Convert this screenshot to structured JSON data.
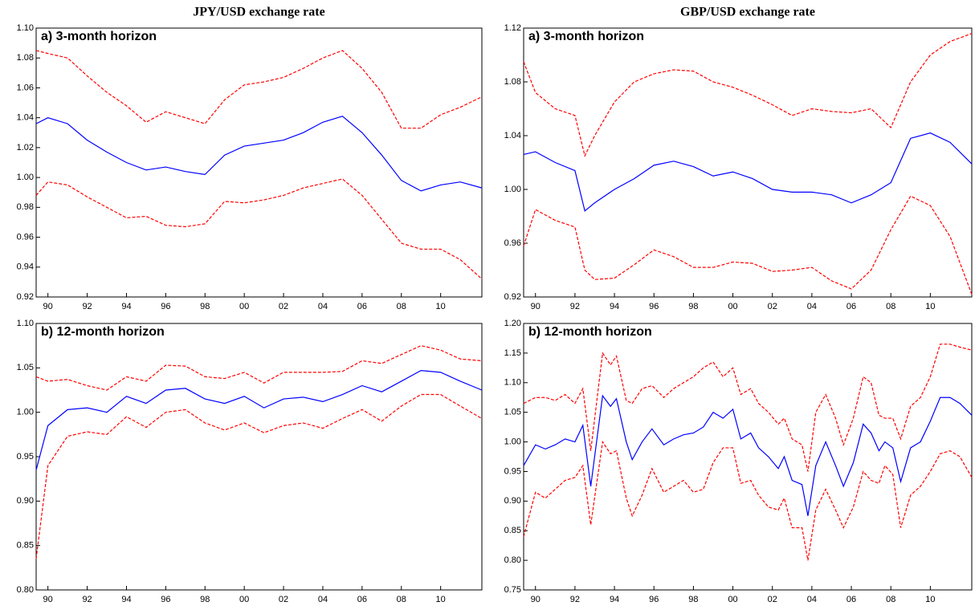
{
  "chart_data": [
    {
      "type": "line",
      "title": "JPY/USD exchange rate",
      "panel_label": "a) 3-month horizon",
      "x": [
        1989.4,
        1990,
        1991,
        1992,
        1993,
        1994,
        1995,
        1996,
        1997,
        1998,
        1999,
        2000,
        2001,
        2002,
        2003,
        2004,
        2005,
        2006,
        2007,
        2008,
        2009,
        2010,
        2011,
        2012.1
      ],
      "series": [
        {
          "color": "#0000ff",
          "dashed": false,
          "values": [
            1.036,
            1.04,
            1.036,
            1.025,
            1.017,
            1.01,
            1.005,
            1.007,
            1.004,
            1.002,
            1.015,
            1.021,
            1.023,
            1.025,
            1.03,
            1.037,
            1.041,
            1.03,
            1.015,
            0.998,
            0.991,
            0.995,
            0.997,
            0.993
          ]
        },
        {
          "color": "#ff0000",
          "dashed": true,
          "values": [
            1.085,
            1.083,
            1.08,
            1.068,
            1.057,
            1.048,
            1.037,
            1.044,
            1.04,
            1.036,
            1.052,
            1.062,
            1.064,
            1.067,
            1.073,
            1.08,
            1.085,
            1.073,
            1.057,
            1.033,
            1.033,
            1.042,
            1.047,
            1.054
          ]
        },
        {
          "color": "#ff0000",
          "dashed": true,
          "values": [
            0.988,
            0.997,
            0.995,
            0.987,
            0.98,
            0.973,
            0.974,
            0.968,
            0.967,
            0.969,
            0.984,
            0.983,
            0.985,
            0.988,
            0.993,
            0.996,
            0.999,
            0.988,
            0.972,
            0.956,
            0.952,
            0.952,
            0.945,
            0.932
          ]
        }
      ],
      "xlim": [
        1989.4,
        2012.1
      ],
      "xticks": [
        {
          "value": 1990,
          "label": "90"
        },
        {
          "value": 1992,
          "label": "92"
        },
        {
          "value": 1994,
          "label": "94"
        },
        {
          "value": 1996,
          "label": "96"
        },
        {
          "value": 1998,
          "label": "98"
        },
        {
          "value": 2000,
          "label": "00"
        },
        {
          "value": 2002,
          "label": "02"
        },
        {
          "value": 2004,
          "label": "04"
        },
        {
          "value": 2006,
          "label": "06"
        },
        {
          "value": 2008,
          "label": "08"
        },
        {
          "value": 2010,
          "label": "10"
        }
      ],
      "ylim": [
        0.92,
        1.1
      ],
      "yticks": [
        0.92,
        0.94,
        0.96,
        0.98,
        {
          "value": 1.0,
          "label": "1.00"
        },
        1.02,
        1.04,
        1.06,
        1.08,
        {
          "value": 1.1,
          "label": "1.10"
        }
      ]
    },
    {
      "type": "line",
      "title": "GBP/USD exchange rate",
      "panel_label": "a) 3-month horizon",
      "x": [
        1989.4,
        1990,
        1991,
        1992,
        1992.5,
        1993,
        1994,
        1995,
        1996,
        1997,
        1998,
        1999,
        2000,
        2001,
        2002,
        2003,
        2004,
        2005,
        2006,
        2007,
        2008,
        2009,
        2010,
        2011,
        2012.1
      ],
      "series": [
        {
          "color": "#0000ff",
          "dashed": false,
          "values": [
            1.026,
            1.028,
            1.02,
            1.014,
            0.984,
            0.99,
            1.0,
            1.008,
            1.018,
            1.021,
            1.017,
            1.01,
            1.013,
            1.008,
            1.0,
            0.998,
            0.998,
            0.996,
            0.99,
            0.996,
            1.005,
            1.038,
            1.042,
            1.035,
            1.019
          ]
        },
        {
          "color": "#ff0000",
          "dashed": true,
          "values": [
            1.095,
            1.072,
            1.06,
            1.055,
            1.025,
            1.04,
            1.065,
            1.08,
            1.086,
            1.089,
            1.088,
            1.08,
            1.076,
            1.07,
            1.063,
            1.055,
            1.06,
            1.058,
            1.057,
            1.06,
            1.046,
            1.08,
            1.1,
            1.11,
            1.116
          ]
        },
        {
          "color": "#ff0000",
          "dashed": true,
          "values": [
            0.958,
            0.985,
            0.977,
            0.972,
            0.94,
            0.933,
            0.934,
            0.944,
            0.955,
            0.95,
            0.942,
            0.942,
            0.946,
            0.945,
            0.939,
            0.94,
            0.942,
            0.932,
            0.926,
            0.94,
            0.97,
            0.995,
            0.988,
            0.965,
            0.922
          ]
        }
      ],
      "xlim": [
        1989.4,
        2012.1
      ],
      "xticks": [
        {
          "value": 1990,
          "label": "90"
        },
        {
          "value": 1992,
          "label": "92"
        },
        {
          "value": 1994,
          "label": "94"
        },
        {
          "value": 1996,
          "label": "96"
        },
        {
          "value": 1998,
          "label": "98"
        },
        {
          "value": 2000,
          "label": "00"
        },
        {
          "value": 2002,
          "label": "02"
        },
        {
          "value": 2004,
          "label": "04"
        },
        {
          "value": 2006,
          "label": "06"
        },
        {
          "value": 2008,
          "label": "08"
        },
        {
          "value": 2010,
          "label": "10"
        }
      ],
      "ylim": [
        0.92,
        1.12
      ],
      "yticks": [
        0.92,
        0.96,
        {
          "value": 1.0,
          "label": "1.00"
        },
        1.04,
        1.08,
        1.12
      ]
    },
    {
      "type": "line",
      "panel_label": "b) 12-month horizon",
      "x": [
        1989.4,
        1990,
        1991,
        1992,
        1993,
        1994,
        1995,
        1996,
        1997,
        1998,
        1999,
        2000,
        2001,
        2002,
        2003,
        2004,
        2005,
        2006,
        2007,
        2008,
        2009,
        2010,
        2011,
        2012.1
      ],
      "series": [
        {
          "color": "#0000ff",
          "dashed": false,
          "values": [
            0.935,
            0.985,
            1.003,
            1.005,
            1.0,
            1.018,
            1.01,
            1.025,
            1.027,
            1.015,
            1.01,
            1.018,
            1.005,
            1.015,
            1.017,
            1.012,
            1.02,
            1.03,
            1.023,
            1.035,
            1.047,
            1.045,
            1.035,
            1.025
          ]
        },
        {
          "color": "#ff0000",
          "dashed": true,
          "values": [
            1.04,
            1.035,
            1.037,
            1.03,
            1.025,
            1.04,
            1.035,
            1.053,
            1.052,
            1.04,
            1.038,
            1.045,
            1.033,
            1.045,
            1.045,
            1.045,
            1.046,
            1.058,
            1.055,
            1.065,
            1.075,
            1.07,
            1.06,
            1.058
          ]
        },
        {
          "color": "#ff0000",
          "dashed": true,
          "values": [
            0.835,
            0.94,
            0.973,
            0.978,
            0.975,
            0.995,
            0.983,
            1.0,
            1.003,
            0.988,
            0.98,
            0.988,
            0.977,
            0.985,
            0.988,
            0.982,
            0.993,
            1.003,
            0.99,
            1.007,
            1.02,
            1.02,
            1.007,
            0.993
          ]
        }
      ],
      "xlim": [
        1989.4,
        2012.1
      ],
      "xticks": [
        {
          "value": 1990,
          "label": "90"
        },
        {
          "value": 1992,
          "label": "92"
        },
        {
          "value": 1994,
          "label": "94"
        },
        {
          "value": 1996,
          "label": "96"
        },
        {
          "value": 1998,
          "label": "98"
        },
        {
          "value": 2000,
          "label": "00"
        },
        {
          "value": 2002,
          "label": "02"
        },
        {
          "value": 2004,
          "label": "04"
        },
        {
          "value": 2006,
          "label": "06"
        },
        {
          "value": 2008,
          "label": "08"
        },
        {
          "value": 2010,
          "label": "10"
        }
      ],
      "ylim": [
        0.8,
        1.1
      ],
      "yticks": [
        {
          "value": 0.8,
          "label": "0.80"
        },
        0.85,
        {
          "value": 0.9,
          "label": "0.90"
        },
        0.95,
        {
          "value": 1.0,
          "label": "1.00"
        },
        1.05,
        {
          "value": 1.1,
          "label": "1.10"
        }
      ]
    },
    {
      "type": "line",
      "panel_label": "b) 12-month horizon",
      "x": [
        1989.4,
        1990,
        1990.5,
        1991,
        1991.5,
        1992,
        1992.4,
        1992.8,
        1993.4,
        1993.8,
        1994.1,
        1994.6,
        1994.9,
        1995.4,
        1995.9,
        1996.5,
        1997,
        1997.5,
        1998,
        1998.5,
        1999,
        1999.5,
        2000,
        2000.4,
        2000.9,
        2001.3,
        2001.8,
        2002.3,
        2002.6,
        2003,
        2003.5,
        2003.8,
        2004.2,
        2004.7,
        2005.2,
        2005.6,
        2006.1,
        2006.6,
        2007,
        2007.4,
        2007.7,
        2008.1,
        2008.5,
        2009,
        2009.5,
        2010,
        2010.5,
        2011,
        2011.5,
        2012.1
      ],
      "series": [
        {
          "color": "#0000ff",
          "dashed": false,
          "values": [
            0.96,
            0.995,
            0.988,
            0.995,
            1.005,
            1.0,
            1.028,
            0.925,
            1.078,
            1.06,
            1.073,
            1.0,
            0.97,
            1.0,
            1.022,
            0.995,
            1.005,
            1.012,
            1.015,
            1.025,
            1.05,
            1.04,
            1.055,
            1.005,
            1.015,
            0.99,
            0.975,
            0.955,
            0.975,
            0.935,
            0.928,
            0.875,
            0.96,
            1.0,
            0.96,
            0.925,
            0.965,
            1.03,
            1.015,
            0.985,
            1.0,
            0.99,
            0.933,
            0.99,
            1.0,
            1.035,
            1.075,
            1.075,
            1.065,
            1.045
          ]
        },
        {
          "color": "#ff0000",
          "dashed": true,
          "values": [
            1.065,
            1.075,
            1.075,
            1.07,
            1.08,
            1.065,
            1.09,
            0.985,
            1.15,
            1.13,
            1.145,
            1.07,
            1.065,
            1.09,
            1.095,
            1.075,
            1.09,
            1.1,
            1.11,
            1.125,
            1.135,
            1.11,
            1.125,
            1.08,
            1.09,
            1.065,
            1.05,
            1.03,
            1.04,
            1.005,
            0.995,
            0.95,
            1.05,
            1.08,
            1.04,
            0.995,
            1.04,
            1.11,
            1.1,
            1.045,
            1.04,
            1.04,
            1.005,
            1.06,
            1.075,
            1.11,
            1.165,
            1.165,
            1.16,
            1.155
          ]
        },
        {
          "color": "#ff0000",
          "dashed": true,
          "values": [
            0.84,
            0.915,
            0.905,
            0.92,
            0.935,
            0.94,
            0.96,
            0.86,
            1.0,
            0.98,
            0.985,
            0.905,
            0.875,
            0.91,
            0.955,
            0.915,
            0.925,
            0.935,
            0.915,
            0.92,
            0.965,
            0.99,
            0.99,
            0.93,
            0.935,
            0.91,
            0.89,
            0.885,
            0.905,
            0.855,
            0.855,
            0.8,
            0.885,
            0.92,
            0.885,
            0.855,
            0.89,
            0.95,
            0.935,
            0.93,
            0.96,
            0.945,
            0.855,
            0.91,
            0.925,
            0.95,
            0.98,
            0.985,
            0.975,
            0.94
          ]
        }
      ],
      "xlim": [
        1989.4,
        2012.1
      ],
      "xticks": [
        {
          "value": 1990,
          "label": "90"
        },
        {
          "value": 1992,
          "label": "92"
        },
        {
          "value": 1994,
          "label": "94"
        },
        {
          "value": 1996,
          "label": "96"
        },
        {
          "value": 1998,
          "label": "98"
        },
        {
          "value": 2000,
          "label": "00"
        },
        {
          "value": 2002,
          "label": "02"
        },
        {
          "value": 2004,
          "label": "04"
        },
        {
          "value": 2006,
          "label": "06"
        },
        {
          "value": 2008,
          "label": "08"
        },
        {
          "value": 2010,
          "label": "10"
        }
      ],
      "ylim": [
        0.75,
        1.2
      ],
      "yticks": [
        0.75,
        {
          "value": 0.8,
          "label": "0.80"
        },
        0.85,
        {
          "value": 0.9,
          "label": "0.90"
        },
        0.95,
        {
          "value": 1.0,
          "label": "1.00"
        },
        1.05,
        {
          "value": 1.1,
          "label": "1.10"
        },
        1.15,
        {
          "value": 1.2,
          "label": "1.20"
        }
      ]
    }
  ]
}
